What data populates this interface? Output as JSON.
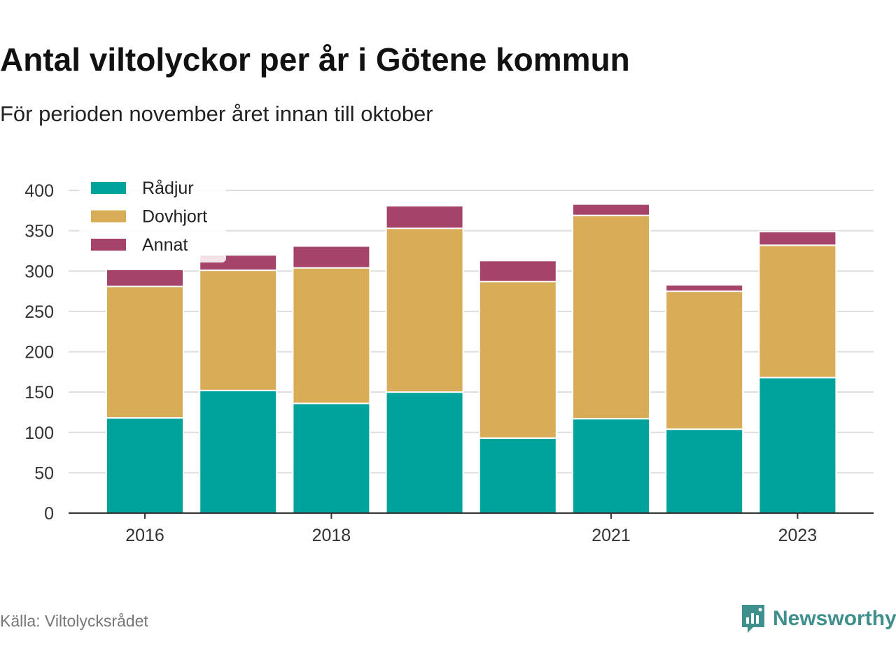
{
  "title": "Antal viltolyckor per år i Götene kommun",
  "subtitle": "För perioden november året innan till oktober",
  "source": "Källa: Viltolycksrådet",
  "brand": {
    "name": "Newsworthy",
    "icon": "bar-chart-speech-bubble-icon"
  },
  "colors": {
    "Rådjur": "#00a39b",
    "Dovhjort": "#d9ac58",
    "Annat": "#a6436b"
  },
  "chart_data": {
    "type": "bar",
    "stacked": true,
    "categories": [
      "2016",
      "2017",
      "2018",
      "2019",
      "2020",
      "2021",
      "2022",
      "2023"
    ],
    "x_tick_labels": [
      "2016",
      "2018",
      "2021",
      "2023"
    ],
    "series": [
      {
        "name": "Rådjur",
        "values": [
          118,
          152,
          136,
          150,
          93,
          117,
          104,
          168
        ]
      },
      {
        "name": "Dovhjort",
        "values": [
          163,
          149,
          168,
          203,
          194,
          252,
          171,
          164
        ]
      },
      {
        "name": "Annat",
        "values": [
          21,
          19,
          27,
          28,
          26,
          14,
          8,
          17
        ]
      }
    ],
    "ylim": [
      0,
      400
    ],
    "yticks": [
      0,
      50,
      100,
      150,
      200,
      250,
      300,
      350,
      400
    ],
    "grid": true,
    "legend": "top-left",
    "xlabel": "",
    "ylabel": ""
  }
}
